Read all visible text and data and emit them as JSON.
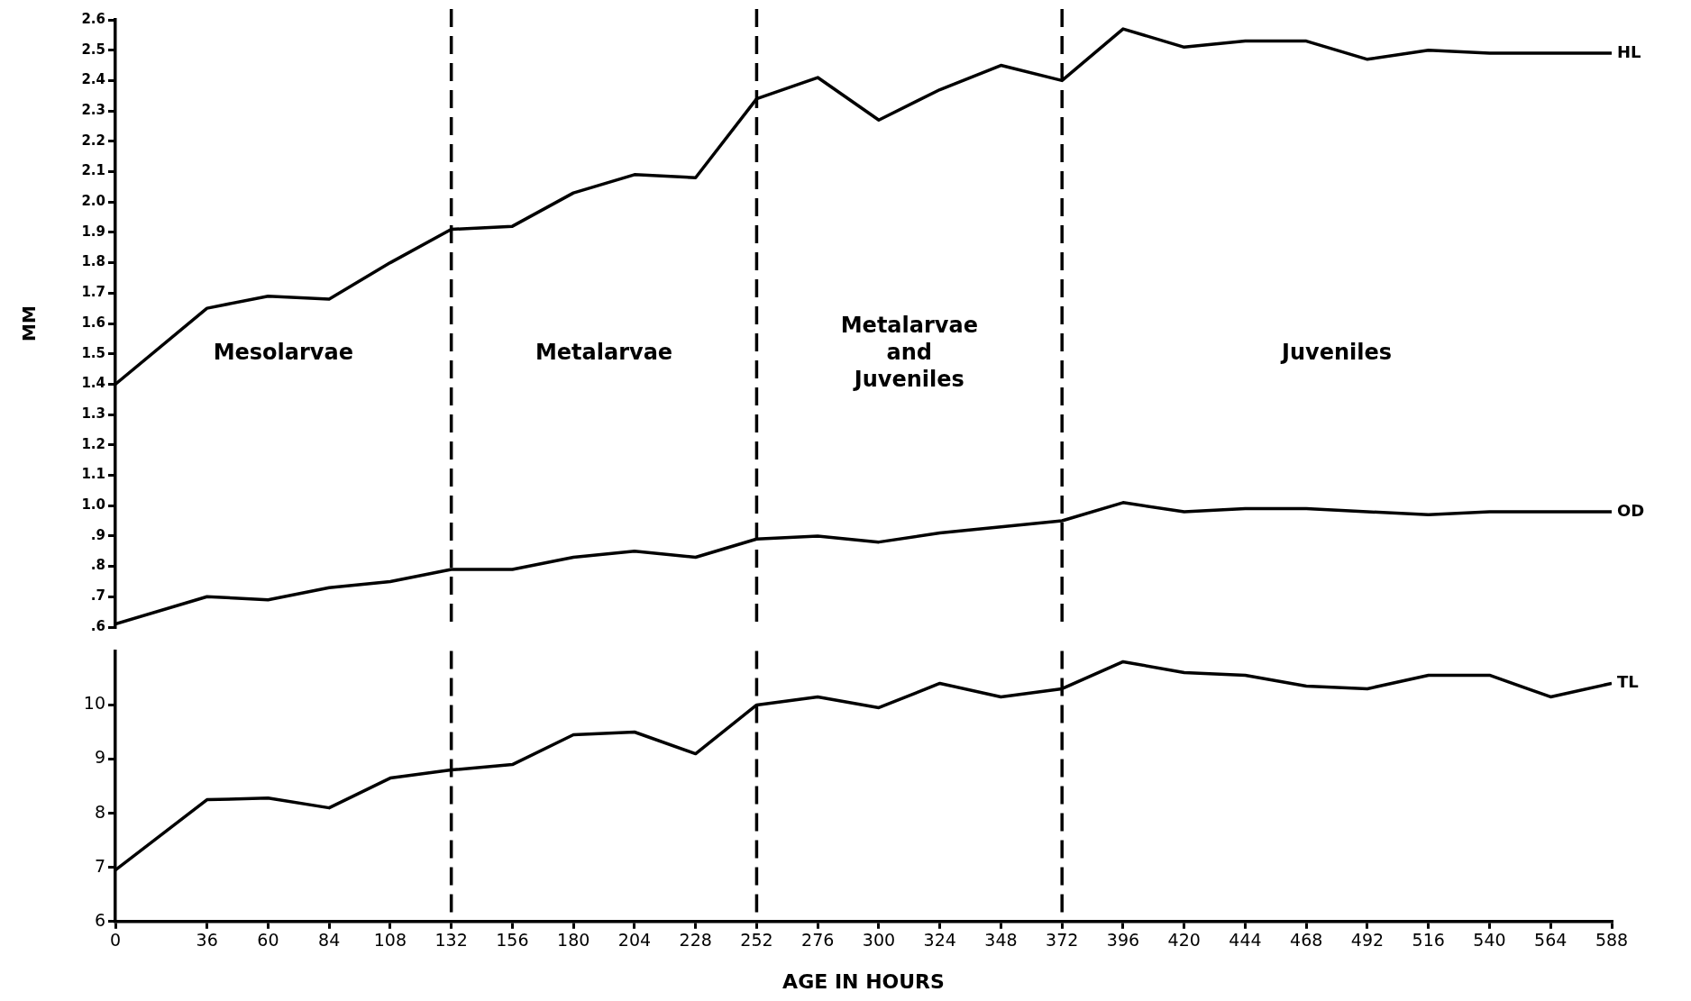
{
  "chart_data": [
    {
      "type": "line",
      "ylabel": "MM",
      "x": [
        0,
        36,
        60,
        84,
        108,
        132,
        156,
        180,
        204,
        228,
        252,
        276,
        300,
        324,
        348,
        372,
        396,
        420,
        444,
        468,
        492,
        516,
        540,
        564,
        588
      ],
      "xlim": [
        0,
        588
      ],
      "ylim": [
        0.6,
        2.6
      ],
      "yticks": [
        {
          "value": 0.6,
          "label": ".6"
        },
        {
          "value": 0.7,
          "label": ".7"
        },
        {
          "value": 0.8,
          "label": ".8"
        },
        {
          "value": 0.9,
          "label": ".9"
        },
        {
          "value": 1.0,
          "label": "1.0"
        },
        1.1,
        1.2,
        1.3,
        1.4,
        1.5,
        1.6,
        1.7,
        1.8,
        1.9,
        {
          "value": 2.0,
          "label": "2.0"
        },
        2.1,
        2.2,
        2.3,
        2.4,
        2.5,
        2.6
      ],
      "tick_labels": "y",
      "grid": false,
      "legend": false,
      "marker": "none",
      "series": [
        {
          "name": "HL",
          "color": "#000000",
          "values": [
            1.4,
            1.65,
            1.69,
            1.68,
            1.8,
            1.91,
            1.92,
            2.03,
            2.09,
            2.08,
            2.34,
            2.41,
            2.27,
            2.37,
            2.45,
            2.4,
            2.57,
            2.51,
            2.53,
            2.53,
            2.47,
            2.5,
            2.49,
            2.49,
            2.49
          ]
        },
        {
          "name": "OD",
          "color": "#000000",
          "values": [
            0.61,
            0.7,
            0.69,
            0.73,
            0.75,
            0.79,
            0.79,
            0.83,
            0.85,
            0.83,
            0.89,
            0.9,
            0.88,
            0.91,
            0.93,
            0.95,
            1.01,
            0.98,
            0.99,
            0.99,
            0.98,
            0.97,
            0.98,
            0.98,
            0.98
          ]
        }
      ],
      "ref_lines": [
        {
          "axis": "x",
          "value": 132,
          "color": "#000000",
          "line_style": "dashed"
        },
        {
          "axis": "x",
          "value": 252,
          "color": "#000000",
          "line_style": "dashed"
        },
        {
          "axis": "x",
          "value": 372,
          "color": "#000000",
          "line_style": "dashed"
        }
      ],
      "annotations": [
        "Mesolarvae",
        "Metalarvae",
        "Metalarvae\nand\nJuveniles",
        "Juveniles"
      ]
    },
    {
      "type": "line",
      "xlabel": "AGE IN HOURS",
      "x": [
        0,
        36,
        60,
        84,
        108,
        132,
        156,
        180,
        204,
        228,
        252,
        276,
        300,
        324,
        348,
        372,
        396,
        420,
        444,
        468,
        492,
        516,
        540,
        564,
        588
      ],
      "xlim": [
        0,
        588
      ],
      "xticks": [
        0,
        36,
        60,
        84,
        108,
        132,
        156,
        180,
        204,
        228,
        252,
        276,
        300,
        324,
        348,
        372,
        396,
        420,
        444,
        468,
        492,
        516,
        540,
        564,
        588
      ],
      "ylim": [
        6,
        11
      ],
      "yticks": [
        6,
        7,
        8,
        9,
        10
      ],
      "grid": false,
      "legend": false,
      "marker": "none",
      "series": [
        {
          "name": "TL",
          "color": "#000000",
          "values": [
            6.95,
            8.25,
            8.28,
            8.1,
            8.65,
            8.8,
            8.9,
            9.45,
            9.5,
            9.1,
            10.0,
            10.15,
            9.95,
            10.4,
            10.15,
            10.3,
            10.8,
            10.6,
            10.55,
            10.35,
            10.3,
            10.55,
            10.55,
            10.15,
            10.4
          ]
        }
      ],
      "ref_lines": [
        {
          "axis": "x",
          "value": 132,
          "color": "#000000",
          "line_style": "dashed"
        },
        {
          "axis": "x",
          "value": 252,
          "color": "#000000",
          "line_style": "dashed"
        },
        {
          "axis": "x",
          "value": 372,
          "color": "#000000",
          "line_style": "dashed"
        }
      ]
    }
  ]
}
